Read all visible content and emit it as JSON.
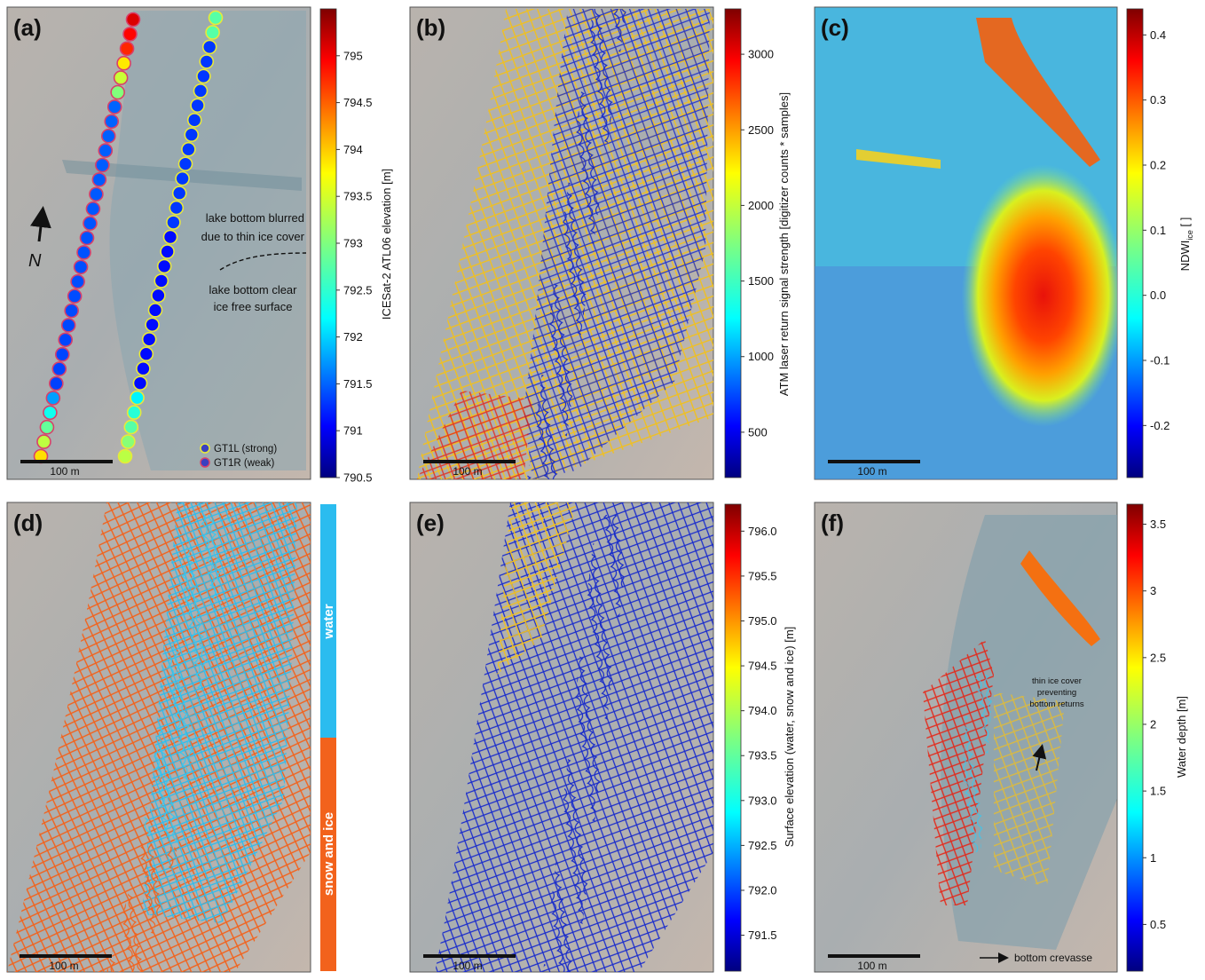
{
  "panels": [
    {
      "id": "a",
      "label": "(a)",
      "scale_bar": "100 m",
      "colorbar": {
        "title": "ICESat-2 ATL06 elevation [m]",
        "ticks": [
          "795",
          "794.5",
          "794",
          "793.5",
          "793",
          "792.5",
          "792",
          "791.5",
          "791",
          "790.5"
        ],
        "range": [
          790.5,
          795.5
        ]
      },
      "annotations": {
        "north": "N",
        "blurred_1": "lake bottom blurred",
        "blurred_2": "due to thin ice cover",
        "clear_1": "lake bottom clear",
        "clear_2": "ice free surface"
      },
      "legend": [
        {
          "label": "GT1L (strong)",
          "edge": "#e8e83a"
        },
        {
          "label": "GT1R (weak)",
          "edge": "#d8406a"
        }
      ]
    },
    {
      "id": "b",
      "label": "(b)",
      "scale_bar": "100 m",
      "colorbar": {
        "title": "ATM laser return signal strength [digitizer counts * samples]",
        "ticks": [
          "3000",
          "2500",
          "2000",
          "1500",
          "1000",
          "500"
        ],
        "range": [
          200,
          3300
        ]
      }
    },
    {
      "id": "c",
      "label": "(c)",
      "scale_bar": "100 m",
      "colorbar": {
        "title_main": "NDWI",
        "title_sub": "ice",
        "title_unit": " [ ]",
        "ticks": [
          "0.4",
          "0.3",
          "0.2",
          "0.1",
          "0.0",
          "-0.1",
          "-0.2"
        ],
        "range": [
          -0.28,
          0.44
        ]
      }
    },
    {
      "id": "d",
      "label": "(d)",
      "scale_bar": "100 m",
      "classes": [
        {
          "label": "water",
          "color": "#2bbcef"
        },
        {
          "label": "snow and ice",
          "color": "#f2621c"
        }
      ]
    },
    {
      "id": "e",
      "label": "(e)",
      "scale_bar": "100 m",
      "colorbar": {
        "title": "Surface elevation (water, snow and ice) [m]",
        "ticks": [
          "796.0",
          "795.5",
          "795.0",
          "794.5",
          "794.0",
          "793.5",
          "793.0",
          "792.5",
          "792.0",
          "791.5"
        ],
        "range": [
          791.1,
          796.3
        ]
      }
    },
    {
      "id": "f",
      "label": "(f)",
      "scale_bar": "100 m",
      "colorbar": {
        "title": "Water depth [m]",
        "ticks": [
          "0.5",
          "1",
          "1.5",
          "2",
          "2.5",
          "3",
          "3.5"
        ],
        "range": [
          0.15,
          3.65
        ]
      },
      "annotations": {
        "thin_1": "thin ice cover",
        "thin_2": "preventing",
        "thin_3": "bottom returns",
        "crevasse": "bottom crevasse"
      }
    }
  ],
  "colors": {
    "jet_dark_red": "#7f0000",
    "jet_red": "#ff2000",
    "jet_orange": "#ff9a00",
    "jet_yellow": "#e6f01a",
    "jet_cyan": "#1ee6e6",
    "jet_blue": "#1040ff",
    "jet_dark_blue": "#000080",
    "water_blue": "#2bbcef",
    "snow_orange": "#f2621c"
  }
}
